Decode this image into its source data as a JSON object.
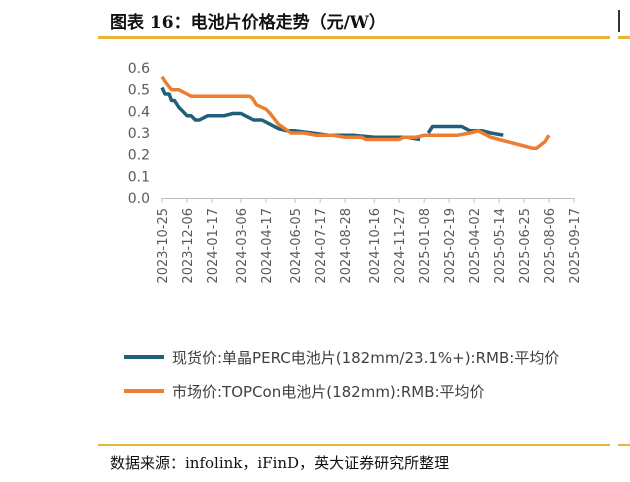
{
  "header": {
    "title": "图表 16：电池片价格走势（元/W）"
  },
  "footer": {
    "source": "数据来源：infolink，iFinD，英大证券研究所整理"
  },
  "colors": {
    "accent_rule": "#e8b43a",
    "perc": "#1f5f7a",
    "topcon": "#ed7d31",
    "axis": "#bfbfbf"
  },
  "chart_data": {
    "type": "line",
    "title": "",
    "xlabel": "",
    "ylabel": "",
    "ylim": [
      0,
      0.6
    ],
    "yticks": [
      "0.0",
      "0.1",
      "0.2",
      "0.3",
      "0.4",
      "0.5",
      "0.6"
    ],
    "xlim": [
      "2023-10-25",
      "2025-09-17"
    ],
    "xticks": [
      "2023-10-25",
      "2023-12-06",
      "2024-01-17",
      "2024-03-06",
      "2024-04-17",
      "2024-06-05",
      "2024-07-17",
      "2024-08-28",
      "2024-10-16",
      "2024-11-27",
      "2025-01-08",
      "2025-02-19",
      "2025-04-02",
      "2025-05-14",
      "2025-06-25",
      "2025-08-06",
      "2025-09-17"
    ],
    "grid": false,
    "legend_position": "bottom",
    "series": [
      {
        "name": "现货价:单晶PERC电池片(182mm/23.1%+):RMB:平均价",
        "color": "#1f5f7a",
        "segments": [
          [
            [
              "2023-10-25",
              0.51
            ],
            [
              "2023-10-30",
              0.48
            ],
            [
              "2023-11-06",
              0.48
            ],
            [
              "2023-11-10",
              0.45
            ],
            [
              "2023-11-15",
              0.45
            ],
            [
              "2023-11-22",
              0.42
            ],
            [
              "2023-11-29",
              0.4
            ],
            [
              "2023-12-06",
              0.38
            ],
            [
              "2023-12-13",
              0.38
            ],
            [
              "2023-12-20",
              0.36
            ],
            [
              "2023-12-27",
              0.36
            ],
            [
              "2024-01-03",
              0.37
            ],
            [
              "2024-01-10",
              0.38
            ],
            [
              "2024-02-07",
              0.38
            ],
            [
              "2024-02-21",
              0.39
            ],
            [
              "2024-03-06",
              0.39
            ],
            [
              "2024-03-13",
              0.38
            ],
            [
              "2024-03-27",
              0.36
            ],
            [
              "2024-04-10",
              0.36
            ],
            [
              "2024-04-24",
              0.34
            ],
            [
              "2024-05-08",
              0.32
            ],
            [
              "2024-05-22",
              0.31
            ],
            [
              "2024-06-05",
              0.31
            ],
            [
              "2024-07-03",
              0.3
            ],
            [
              "2024-07-31",
              0.29
            ],
            [
              "2024-09-11",
              0.29
            ],
            [
              "2024-10-16",
              0.28
            ],
            [
              "2024-12-11",
              0.28
            ],
            [
              "2025-01-01",
              0.27
            ]
          ],
          [
            [
              "2025-01-15",
              0.3
            ],
            [
              "2025-01-22",
              0.33
            ],
            [
              "2025-02-05",
              0.33
            ],
            [
              "2025-03-12",
              0.33
            ],
            [
              "2025-03-26",
              0.31
            ],
            [
              "2025-04-16",
              0.31
            ],
            [
              "2025-04-30",
              0.3
            ],
            [
              "2025-05-21",
              0.29
            ]
          ]
        ]
      },
      {
        "name": "市场价:TOPCon电池片(182mm):RMB:平均价",
        "color": "#ed7d31",
        "segments": [
          [
            [
              "2023-10-25",
              0.56
            ],
            [
              "2023-11-01",
              0.53
            ],
            [
              "2023-11-10",
              0.5
            ],
            [
              "2023-11-22",
              0.5
            ],
            [
              "2023-12-06",
              0.48
            ],
            [
              "2023-12-13",
              0.47
            ],
            [
              "2024-01-17",
              0.47
            ],
            [
              "2024-02-21",
              0.47
            ],
            [
              "2024-03-20",
              0.47
            ],
            [
              "2024-03-25",
              0.46
            ],
            [
              "2024-04-01",
              0.43
            ],
            [
              "2024-04-17",
              0.41
            ],
            [
              "2024-04-24",
              0.39
            ],
            [
              "2024-05-08",
              0.34
            ],
            [
              "2024-05-29",
              0.3
            ],
            [
              "2024-06-19",
              0.3
            ],
            [
              "2024-07-10",
              0.29
            ],
            [
              "2024-08-07",
              0.29
            ],
            [
              "2024-08-28",
              0.28
            ],
            [
              "2024-09-25",
              0.28
            ],
            [
              "2024-10-02",
              0.27
            ],
            [
              "2024-11-27",
              0.27
            ],
            [
              "2024-12-04",
              0.28
            ],
            [
              "2024-12-25",
              0.28
            ],
            [
              "2025-01-08",
              0.29
            ],
            [
              "2025-02-12",
              0.29
            ],
            [
              "2025-03-05",
              0.29
            ],
            [
              "2025-03-26",
              0.3
            ],
            [
              "2025-04-09",
              0.31
            ],
            [
              "2025-04-30",
              0.28
            ],
            [
              "2025-05-14",
              0.27
            ],
            [
              "2025-05-28",
              0.26
            ],
            [
              "2025-06-11",
              0.25
            ],
            [
              "2025-06-25",
              0.24
            ],
            [
              "2025-07-09",
              0.23
            ],
            [
              "2025-07-16",
              0.23
            ],
            [
              "2025-07-30",
              0.26
            ],
            [
              "2025-08-06",
              0.29
            ]
          ]
        ]
      }
    ]
  }
}
